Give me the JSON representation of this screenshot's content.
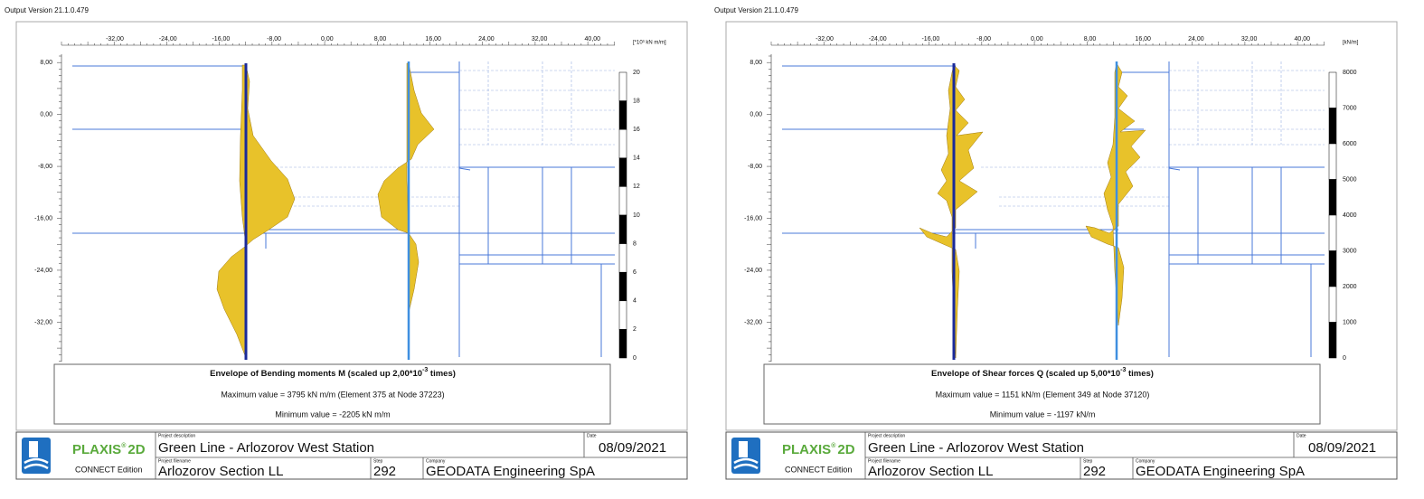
{
  "panels": [
    {
      "version": "Output Version 21.1.0.479",
      "unit": "[*10³ kN m/m]",
      "x_ticks": [
        "-32,00",
        "-24,00",
        "-16,00",
        "-8,00",
        "0,00",
        "8,00",
        "16,00",
        "24,00",
        "32,00",
        "40,00"
      ],
      "y_ticks": [
        "8,00",
        "0,00",
        "-8,00",
        "-16,00",
        "-24,00",
        "-32,00"
      ],
      "legend_ticks": [
        "20",
        "18",
        "16",
        "14",
        "12",
        "10",
        "8",
        "6",
        "4",
        "2",
        "0"
      ],
      "title": {
        "text": "Envelope of Bending moments M (scaled up 2,00*10",
        "exponent": "-3",
        "suffix": " times)"
      },
      "maximum": "Maximum value = 3795 kN m/m (Element 375 at Node 37223)",
      "minimum": "Minimum value = -2205 kN m/m",
      "footer": {
        "brand": "PLAXIS",
        "mark": "®",
        "product": "2D",
        "edition": "CONNECT Edition",
        "description_label": "Project description",
        "description": "Green Line - Arlozorov West Station",
        "date_label": "Date",
        "date": "08/09/2021",
        "filename_label": "Project filename",
        "filename": "Arlozorov Section LL",
        "step_label": "Step",
        "step": "292",
        "company_label": "Company",
        "company": "GEODATA Engineering SpA"
      }
    },
    {
      "version": "Output Version 21.1.0.479",
      "unit": "[kN/m]",
      "x_ticks": [
        "-32,00",
        "-24,00",
        "-16,00",
        "-8,00",
        "0,00",
        "8,00",
        "16,00",
        "24,00",
        "32,00",
        "40,00"
      ],
      "y_ticks": [
        "8,00",
        "0,00",
        "-8,00",
        "-16,00",
        "-24,00",
        "-32,00"
      ],
      "legend_ticks": [
        "8000",
        "7000",
        "6000",
        "5000",
        "4000",
        "3000",
        "2000",
        "1000",
        "0"
      ],
      "title": {
        "text": "Envelope of Shear forces Q (scaled up 5,00*10",
        "exponent": "-3",
        "suffix": " times)"
      },
      "maximum": "Maximum value = 1151 kN/m (Element 349 at Node 37120)",
      "minimum": "Minimum value = -1197 kN/m",
      "footer": {
        "brand": "PLAXIS",
        "mark": "®",
        "product": "2D",
        "edition": "CONNECT Edition",
        "description_label": "Project description",
        "description": "Green Line - Arlozorov West Station",
        "date_label": "Date",
        "date": "08/09/2021",
        "filename_label": "Project filename",
        "filename": "Arlozorov Section LL",
        "step_label": "Step",
        "step": "292",
        "company_label": "Company",
        "company": "GEODATA Engineering SpA"
      }
    }
  ]
}
